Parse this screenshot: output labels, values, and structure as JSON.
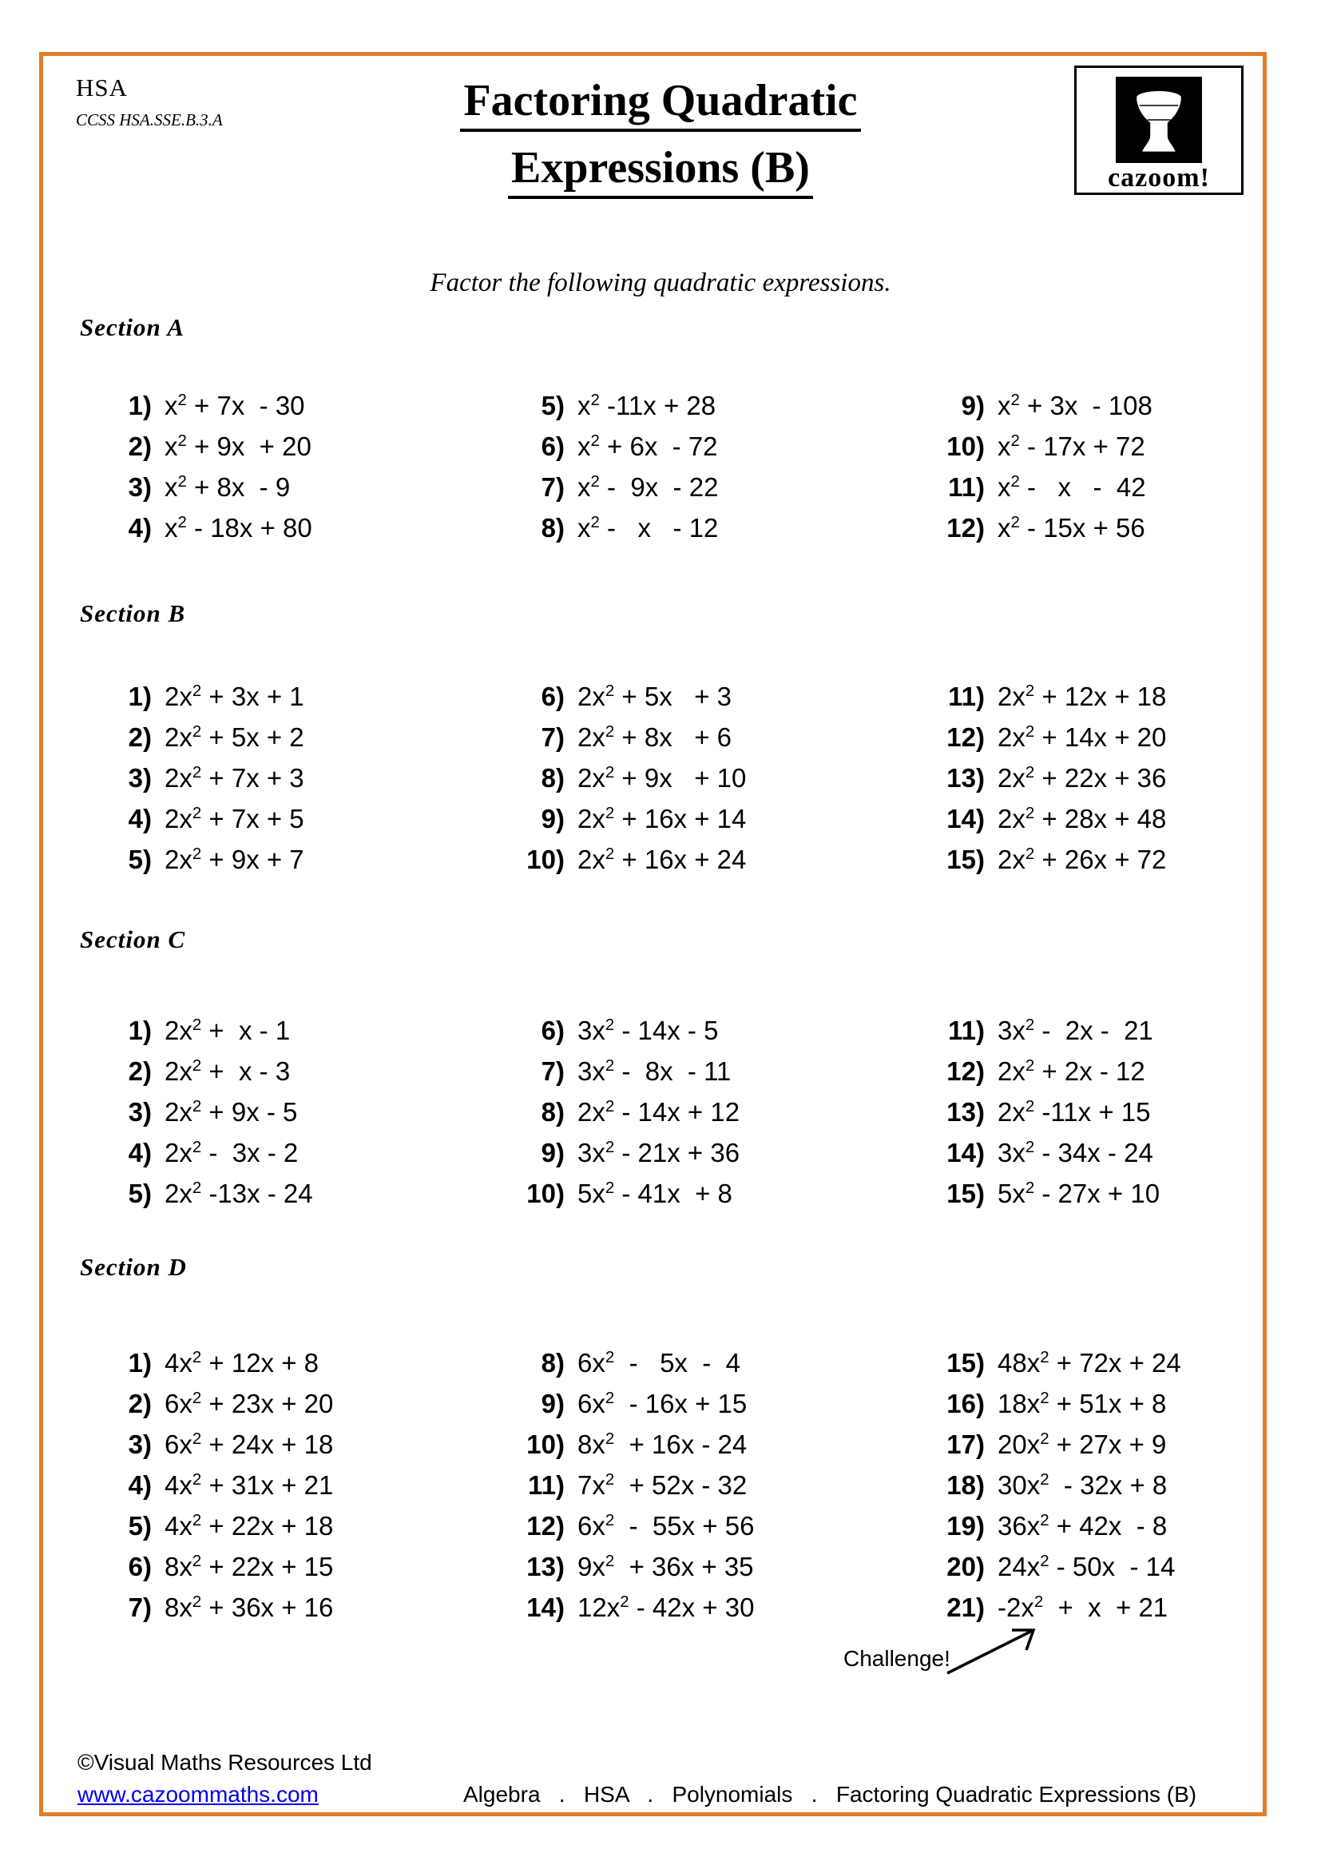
{
  "page": {
    "accent_border_color": "#E07E2C",
    "link_color": "#0000EE",
    "header": {
      "course_code": "HSA",
      "ccss_code": "CCSS HSA.SSE.B.3.A",
      "title_line1": "Factoring Quadratic",
      "title_line2": "Expressions (B)",
      "logo_text": "cazoom!",
      "logo_icon": "djembe-drum-icon"
    },
    "instruction": "Factor the following quadratic expressions.",
    "sections": [
      {
        "name": "Section A",
        "columns": [
          [
            {
              "n": "1)",
              "e": "x^2 + 7x  - 30"
            },
            {
              "n": "2)",
              "e": "x^2 + 9x  + 20"
            },
            {
              "n": "3)",
              "e": "x^2 + 8x  - 9"
            },
            {
              "n": "4)",
              "e": "x^2 - 18x + 80"
            }
          ],
          [
            {
              "n": "5)",
              "e": "x^2 -11x + 28"
            },
            {
              "n": "6)",
              "e": "x^2 + 6x  - 72"
            },
            {
              "n": "7)",
              "e": "x^2 -  9x  - 22"
            },
            {
              "n": "8)",
              "e": "x^2 -   x   - 12"
            }
          ],
          [
            {
              "n": "9)",
              "e": "x^2 + 3x  - 108"
            },
            {
              "n": "10)",
              "e": "x^2 - 17x + 72"
            },
            {
              "n": "11)",
              "e": "x^2 -   x   -  42"
            },
            {
              "n": "12)",
              "e": "x^2 - 15x + 56"
            }
          ]
        ]
      },
      {
        "name": "Section B",
        "columns": [
          [
            {
              "n": "1)",
              "e": "2x^2 + 3x + 1"
            },
            {
              "n": "2)",
              "e": "2x^2 + 5x + 2"
            },
            {
              "n": "3)",
              "e": "2x^2 + 7x + 3"
            },
            {
              "n": "4)",
              "e": "2x^2 + 7x + 5"
            },
            {
              "n": "5)",
              "e": "2x^2 + 9x + 7"
            }
          ],
          [
            {
              "n": "6)",
              "e": "2x^2 + 5x   + 3"
            },
            {
              "n": "7)",
              "e": "2x^2 + 8x   + 6"
            },
            {
              "n": "8)",
              "e": "2x^2 + 9x   + 10"
            },
            {
              "n": "9)",
              "e": "2x^2 + 16x + 14"
            },
            {
              "n": "10)",
              "e": "2x^2 + 16x + 24"
            }
          ],
          [
            {
              "n": "11)",
              "e": "2x^2 + 12x + 18"
            },
            {
              "n": "12)",
              "e": "2x^2 + 14x + 20"
            },
            {
              "n": "13)",
              "e": "2x^2 + 22x + 36"
            },
            {
              "n": "14)",
              "e": "2x^2 + 28x + 48"
            },
            {
              "n": "15)",
              "e": "2x^2 + 26x + 72"
            }
          ]
        ]
      },
      {
        "name": "Section C",
        "columns": [
          [
            {
              "n": "1)",
              "e": "2x^2 +  x - 1"
            },
            {
              "n": "2)",
              "e": "2x^2 +  x - 3"
            },
            {
              "n": "3)",
              "e": "2x^2 + 9x - 5"
            },
            {
              "n": "4)",
              "e": "2x^2 -  3x - 2"
            },
            {
              "n": "5)",
              "e": "2x^2 -13x - 24"
            }
          ],
          [
            {
              "n": "6)",
              "e": "3x^2 - 14x - 5"
            },
            {
              "n": "7)",
              "e": "3x^2 -  8x  - 11"
            },
            {
              "n": "8)",
              "e": "2x^2 - 14x + 12"
            },
            {
              "n": "9)",
              "e": "3x^2 - 21x + 36"
            },
            {
              "n": "10)",
              "e": "5x^2 - 41x  + 8"
            }
          ],
          [
            {
              "n": "11)",
              "e": "3x^2 -  2x -  21"
            },
            {
              "n": "12)",
              "e": "2x^2 + 2x - 12"
            },
            {
              "n": "13)",
              "e": "2x^2 -11x + 15"
            },
            {
              "n": "14)",
              "e": "3x^2 - 34x - 24"
            },
            {
              "n": "15)",
              "e": "5x^2 - 27x + 10"
            }
          ]
        ]
      },
      {
        "name": "Section D",
        "columns": [
          [
            {
              "n": "1)",
              "e": "4x^2 + 12x + 8"
            },
            {
              "n": "2)",
              "e": "6x^2 + 23x + 20"
            },
            {
              "n": "3)",
              "e": "6x^2 + 24x + 18"
            },
            {
              "n": "4)",
              "e": "4x^2 + 31x + 21"
            },
            {
              "n": "5)",
              "e": "4x^2 + 22x + 18"
            },
            {
              "n": "6)",
              "e": "8x^2 + 22x + 15"
            },
            {
              "n": "7)",
              "e": "8x^2 + 36x + 16"
            }
          ],
          [
            {
              "n": "8)",
              "e": "6x^2  -   5x  -  4"
            },
            {
              "n": "9)",
              "e": "6x^2  - 16x + 15"
            },
            {
              "n": "10)",
              "e": "8x^2  + 16x - 24"
            },
            {
              "n": "11)",
              "e": "7x^2  + 52x - 32"
            },
            {
              "n": "12)",
              "e": "6x^2  -  55x + 56"
            },
            {
              "n": "13)",
              "e": "9x^2  + 36x + 35"
            },
            {
              "n": "14)",
              "e": "12x^2 - 42x + 30"
            }
          ],
          [
            {
              "n": "15)",
              "e": "48x^2 + 72x + 24"
            },
            {
              "n": "16)",
              "e": "18x^2 + 51x + 8"
            },
            {
              "n": "17)",
              "e": "20x^2 + 27x + 9"
            },
            {
              "n": "18)",
              "e": "30x^2  - 32x + 8"
            },
            {
              "n": "19)",
              "e": "36x^2 + 42x  - 8"
            },
            {
              "n": "20)",
              "e": "24x^2 - 50x  - 14"
            },
            {
              "n": "21)",
              "e": "-2x^2  +  x  + 21"
            }
          ]
        ]
      }
    ],
    "challenge": {
      "label": "Challenge!"
    },
    "footer": {
      "copyright": "©Visual Maths Resources Ltd",
      "website": "www.cazoommaths.com",
      "breadcrumb": "Algebra   .   HSA   .   Polynomials   .   Factoring Quadratic Expressions (B)"
    }
  }
}
